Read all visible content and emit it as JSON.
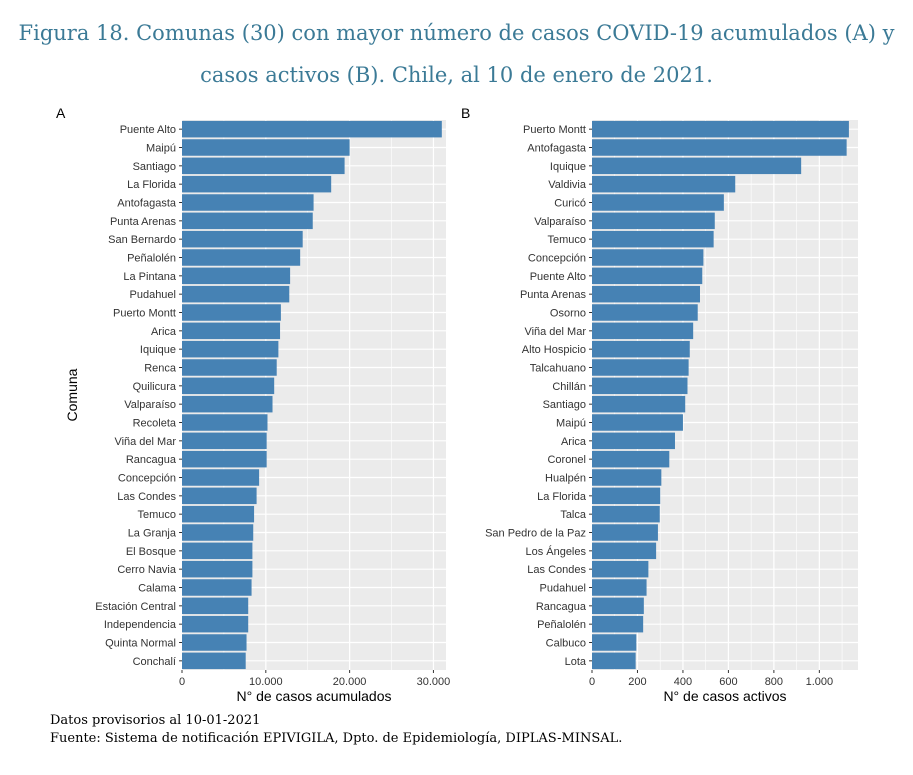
{
  "figure": {
    "title_line1": "Figura 18. Comunas (30) con mayor número de casos COVID-19 acumulados (A) y",
    "title_line2": "casos activos (B). Chile, al 10 de enero de 2021."
  },
  "footer": {
    "line1": "Datos provisorios al 10-01-2021",
    "line2": "Fuente: Sistema de notificación EPIVIGILA, Dpto. de Epidemiología, DIPLAS-MINSAL."
  },
  "colors": {
    "bar": "#4682b4",
    "panel_bg": "#ebebeb",
    "grid": "#ffffff"
  },
  "chart_data": [
    {
      "type": "bar",
      "orientation": "horizontal",
      "panel_label": "A",
      "xlabel": "N° de casos acumulados",
      "ylabel": "Comuna",
      "xlim": [
        0,
        31500
      ],
      "xticks": [
        0,
        10000,
        20000,
        30000
      ],
      "xtick_labels": [
        "0",
        "10.000",
        "20.000",
        "30.000"
      ],
      "categories": [
        "Puente Alto",
        "Maipú",
        "Santiago",
        "La Florida",
        "Antofagasta",
        "Punta Arenas",
        "San Bernardo",
        "Peñalolén",
        "La Pintana",
        "Pudahuel",
        "Puerto Montt",
        "Arica",
        "Iquique",
        "Renca",
        "Quilicura",
        "Valparaíso",
        "Recoleta",
        "Viña del Mar",
        "Rancagua",
        "Concepción",
        "Las Condes",
        "Temuco",
        "La Granja",
        "El Bosque",
        "Cerro Navia",
        "Calama",
        "Estación Central",
        "Independencia",
        "Quinta Normal",
        "Conchalí"
      ],
      "values": [
        31000,
        20000,
        19400,
        17800,
        15700,
        15600,
        14400,
        14100,
        12900,
        12800,
        11800,
        11700,
        11500,
        11300,
        11000,
        10800,
        10200,
        10100,
        10100,
        9200,
        8900,
        8600,
        8500,
        8400,
        8400,
        8300,
        7900,
        7900,
        7700,
        7600
      ]
    },
    {
      "type": "bar",
      "orientation": "horizontal",
      "panel_label": "B",
      "xlabel": "N° de casos activos",
      "ylabel": "",
      "xlim": [
        0,
        1170
      ],
      "xticks": [
        0,
        200,
        400,
        600,
        800,
        1000
      ],
      "xtick_labels": [
        "0",
        "200",
        "400",
        "600",
        "800",
        "1.000"
      ],
      "categories": [
        "Puerto Montt",
        "Antofagasta",
        "Iquique",
        "Valdivia",
        "Curicó",
        "Valparaíso",
        "Temuco",
        "Concepción",
        "Puente Alto",
        "Punta Arenas",
        "Osorno",
        "Viña del Mar",
        "Alto Hospicio",
        "Talcahuano",
        "Chillán",
        "Santiago",
        "Maipú",
        "Arica",
        "Coronel",
        "Hualpén",
        "La Florida",
        "Talca",
        "San Pedro de la Paz",
        "Los Ángeles",
        "Las Condes",
        "Pudahuel",
        "Rancagua",
        "Peñalolén",
        "Calbuco",
        "Lota"
      ],
      "values": [
        1130,
        1120,
        920,
        630,
        580,
        540,
        535,
        490,
        485,
        475,
        465,
        445,
        430,
        425,
        420,
        410,
        400,
        365,
        340,
        305,
        300,
        298,
        290,
        282,
        248,
        240,
        228,
        225,
        195,
        192
      ]
    }
  ]
}
